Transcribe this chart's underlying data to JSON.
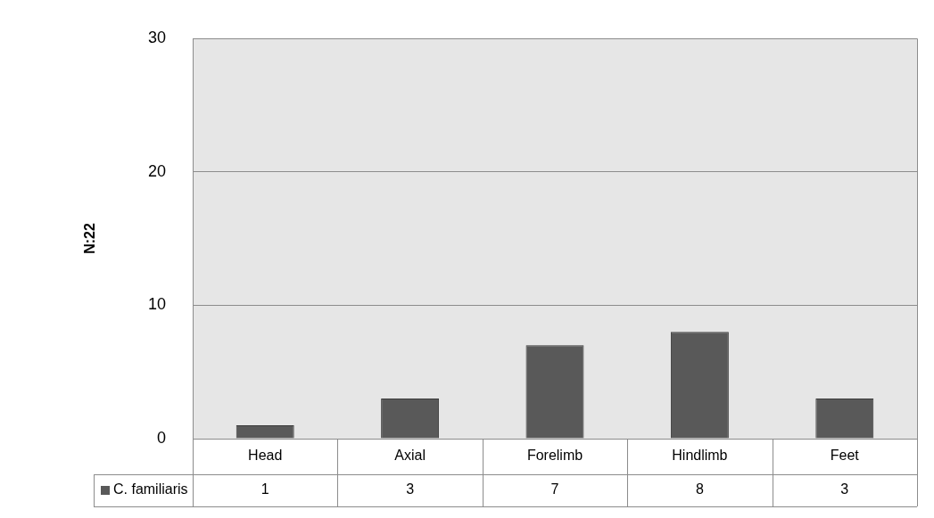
{
  "chart_data": {
    "type": "bar",
    "ylabel": "N:22",
    "categories": [
      "Head",
      "Axial",
      "Forelimb",
      "Hindlimb",
      "Feet"
    ],
    "series": [
      {
        "name": "C. familiaris",
        "color": "#595959",
        "values": [
          1,
          3,
          7,
          8,
          3
        ]
      }
    ],
    "ylim": [
      0,
      30
    ],
    "yticks": [
      0,
      10,
      20,
      30
    ],
    "grid": "y",
    "legend": "bottom",
    "data_labels": true
  }
}
